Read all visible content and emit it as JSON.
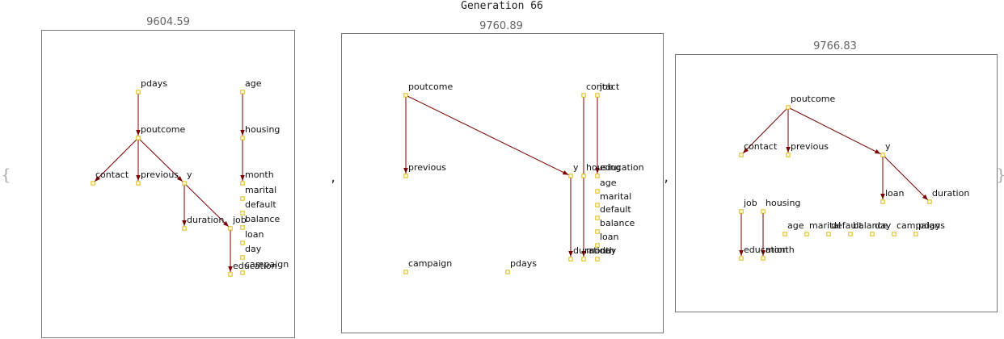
{
  "title": "Generation 66",
  "brace_open": "{",
  "brace_close": "}",
  "separator": ",",
  "panels": [
    {
      "score": "9604.59",
      "nodes": [
        {
          "id": "pdays",
          "label": "pdays"
        },
        {
          "id": "age",
          "label": "age"
        },
        {
          "id": "poutcome",
          "label": "poutcome"
        },
        {
          "id": "housing",
          "label": "housing"
        },
        {
          "id": "contact",
          "label": "contact"
        },
        {
          "id": "previous",
          "label": "previous"
        },
        {
          "id": "y",
          "label": "y"
        },
        {
          "id": "month",
          "label": "month"
        },
        {
          "id": "marital",
          "label": "marital"
        },
        {
          "id": "default",
          "label": "default"
        },
        {
          "id": "duration",
          "label": "duration"
        },
        {
          "id": "job",
          "label": "job"
        },
        {
          "id": "balance",
          "label": "balance"
        },
        {
          "id": "loan",
          "label": "loan"
        },
        {
          "id": "day",
          "label": "day"
        },
        {
          "id": "education",
          "label": "education"
        },
        {
          "id": "campaign",
          "label": "campaign"
        }
      ],
      "edges": [
        [
          "pdays",
          "poutcome"
        ],
        [
          "poutcome",
          "contact"
        ],
        [
          "poutcome",
          "previous"
        ],
        [
          "poutcome",
          "y"
        ],
        [
          "y",
          "duration"
        ],
        [
          "y",
          "job"
        ],
        [
          "job",
          "education"
        ],
        [
          "age",
          "housing"
        ],
        [
          "housing",
          "month"
        ]
      ]
    },
    {
      "score": "9760.89",
      "nodes": [
        {
          "id": "poutcome",
          "label": "poutcome"
        },
        {
          "id": "contact",
          "label": "contact"
        },
        {
          "id": "job",
          "label": "job"
        },
        {
          "id": "previous",
          "label": "previous"
        },
        {
          "id": "y",
          "label": "y"
        },
        {
          "id": "housing",
          "label": "housing"
        },
        {
          "id": "education",
          "label": "education"
        },
        {
          "id": "age",
          "label": "age"
        },
        {
          "id": "marital",
          "label": "marital"
        },
        {
          "id": "default",
          "label": "default"
        },
        {
          "id": "balance",
          "label": "balance"
        },
        {
          "id": "loan",
          "label": "loan"
        },
        {
          "id": "duration",
          "label": "duration"
        },
        {
          "id": "month",
          "label": "month"
        },
        {
          "id": "day",
          "label": "day"
        },
        {
          "id": "campaign",
          "label": "campaign"
        },
        {
          "id": "pdays",
          "label": "pdays"
        }
      ],
      "edges": [
        [
          "poutcome",
          "previous"
        ],
        [
          "poutcome",
          "y"
        ],
        [
          "y",
          "duration"
        ],
        [
          "contact",
          "month"
        ],
        [
          "job",
          "education"
        ]
      ]
    },
    {
      "score": "9766.83",
      "nodes": [
        {
          "id": "poutcome",
          "label": "poutcome"
        },
        {
          "id": "contact",
          "label": "contact"
        },
        {
          "id": "previous",
          "label": "previous"
        },
        {
          "id": "y",
          "label": "y"
        },
        {
          "id": "loan",
          "label": "loan"
        },
        {
          "id": "duration",
          "label": "duration"
        },
        {
          "id": "job",
          "label": "job"
        },
        {
          "id": "housing",
          "label": "housing"
        },
        {
          "id": "age",
          "label": "age"
        },
        {
          "id": "marital",
          "label": "marital"
        },
        {
          "id": "default",
          "label": "default"
        },
        {
          "id": "balance",
          "label": "balance"
        },
        {
          "id": "day",
          "label": "day"
        },
        {
          "id": "campaign",
          "label": "campaign"
        },
        {
          "id": "pdays",
          "label": "pdays"
        },
        {
          "id": "education",
          "label": "education"
        },
        {
          "id": "month",
          "label": "month"
        }
      ],
      "edges": [
        [
          "poutcome",
          "contact"
        ],
        [
          "poutcome",
          "previous"
        ],
        [
          "poutcome",
          "y"
        ],
        [
          "y",
          "loan"
        ],
        [
          "y",
          "duration"
        ],
        [
          "job",
          "education"
        ],
        [
          "housing",
          "month"
        ]
      ]
    }
  ]
}
